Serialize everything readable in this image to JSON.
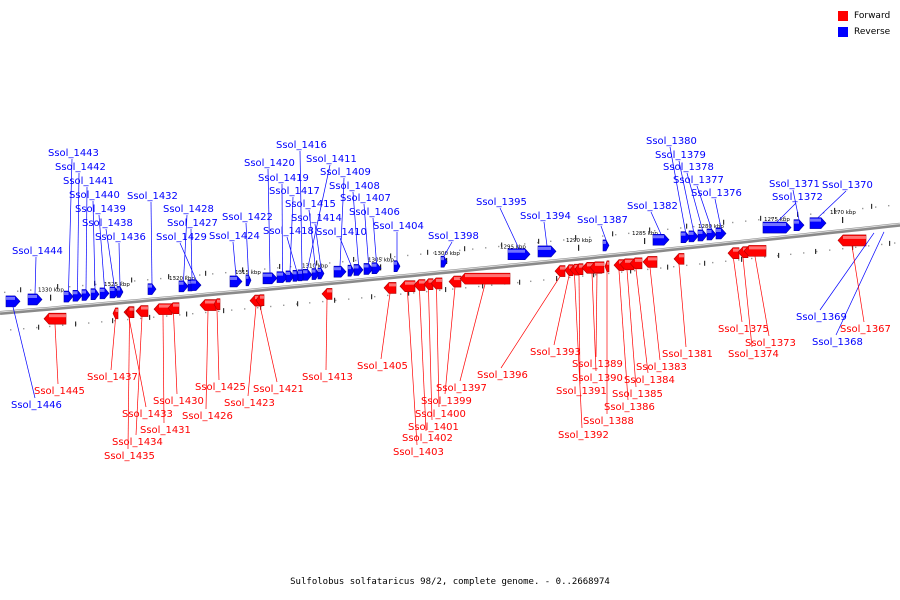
{
  "title": "Sulfolobus solfataricus 98/2, complete genome. - 0..2668974",
  "colors": {
    "forward": "#ff0000",
    "reverse": "#0000ff",
    "forward_dark": "#b00000",
    "reverse_dark": "#0000aa",
    "backbone": "#888888"
  },
  "legend": [
    {
      "label": "Forward",
      "color": "#ff0000"
    },
    {
      "label": "Reverse",
      "color": "#0000ff"
    }
  ],
  "ruler_ticks": [
    {
      "label": "1330 kbp"
    },
    {
      "label": "1325 kbp"
    },
    {
      "label": "1320 kbp"
    },
    {
      "label": "1315 kbp"
    },
    {
      "label": "1310 kbp"
    },
    {
      "label": "1305 kbp"
    },
    {
      "label": "1300 kbp"
    },
    {
      "label": "1295 kbp"
    },
    {
      "label": "1290 kbp"
    },
    {
      "label": "1285 kbp"
    },
    {
      "label": "1280 kbp"
    },
    {
      "label": "1275 kbp"
    },
    {
      "label": "1270 kbp"
    }
  ],
  "reverse_genes": [
    "Ssol_1446",
    "Ssol_1444",
    "Ssol_1443",
    "Ssol_1442",
    "Ssol_1441",
    "Ssol_1440",
    "Ssol_1439",
    "Ssol_1438",
    "Ssol_1436",
    "Ssol_1432",
    "Ssol_1428",
    "Ssol_1427",
    "Ssol_1429",
    "Ssol_1424",
    "Ssol_1422",
    "Ssol_1420",
    "Ssol_1419",
    "Ssol_1417",
    "Ssol_1418",
    "Ssol_1416",
    "Ssol_1411",
    "Ssol_1415",
    "Ssol_1414",
    "Ssol_1409",
    "Ssol_1410",
    "Ssol_1408",
    "Ssol_1407",
    "Ssol_1406",
    "Ssol_1404",
    "Ssol_1398",
    "Ssol_1395",
    "Ssol_1394",
    "Ssol_1387",
    "Ssol_1382",
    "Ssol_1380",
    "Ssol_1379",
    "Ssol_1378",
    "Ssol_1377",
    "Ssol_1376",
    "Ssol_1372",
    "Ssol_1371",
    "Ssol_1370",
    "Ssol_1369",
    "Ssol_1368"
  ],
  "forward_genes": [
    "Ssol_1445",
    "Ssol_1437",
    "Ssol_1433",
    "Ssol_1434",
    "Ssol_1435",
    "Ssol_1431",
    "Ssol_1430",
    "Ssol_1426",
    "Ssol_1425",
    "Ssol_1423",
    "Ssol_1421",
    "Ssol_1413",
    "Ssol_1405",
    "Ssol_1403",
    "Ssol_1402",
    "Ssol_1401",
    "Ssol_1400",
    "Ssol_1399",
    "Ssol_1397",
    "Ssol_1396",
    "Ssol_1393",
    "Ssol_1392",
    "Ssol_1391",
    "Ssol_1390",
    "Ssol_1389",
    "Ssol_1388",
    "Ssol_1386",
    "Ssol_1385",
    "Ssol_1384",
    "Ssol_1383",
    "Ssol_1381",
    "Ssol_1375",
    "Ssol_1374",
    "Ssol_1373",
    "Ssol_1367"
  ]
}
